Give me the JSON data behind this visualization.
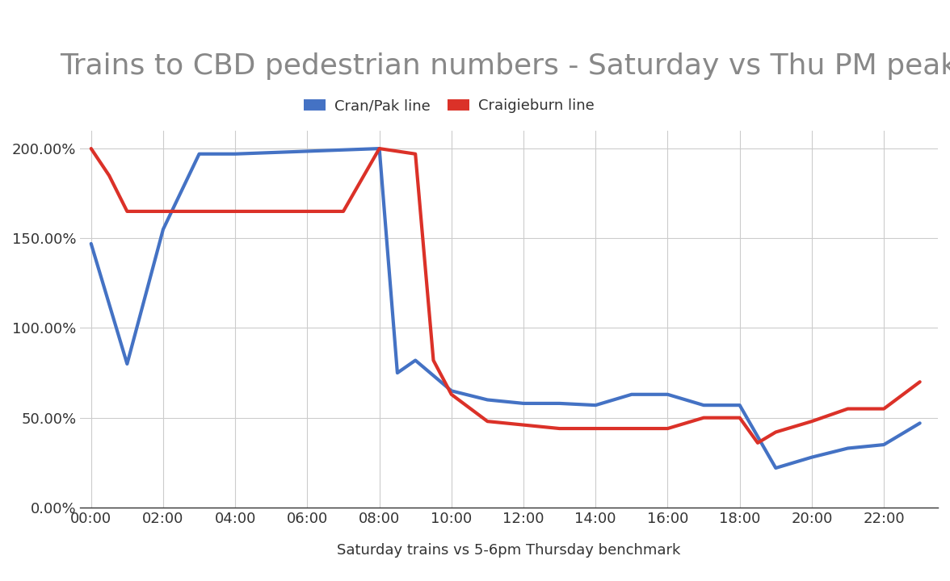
{
  "title": "Trains to CBD pedestrian numbers - Saturday vs Thu PM peak",
  "xlabel": "Saturday trains vs 5-6pm Thursday benchmark",
  "legend": [
    "Cran/Pak line",
    "Craigieburn line"
  ],
  "legend_colors": [
    "#4472c4",
    "#db3128"
  ],
  "background_color": "#ffffff",
  "grid_color": "#cccccc",
  "title_color": "#888888",
  "xlabel_color": "#333333",
  "x_ticks": [
    "00:00",
    "02:00",
    "04:00",
    "06:00",
    "08:00",
    "10:00",
    "12:00",
    "14:00",
    "16:00",
    "18:00",
    "20:00",
    "22:00"
  ],
  "x_tick_positions": [
    0,
    2,
    4,
    6,
    8,
    10,
    12,
    14,
    16,
    18,
    20,
    22
  ],
  "blue_x": [
    0,
    1,
    2,
    3,
    4,
    8,
    8.5,
    9,
    10,
    11,
    12,
    13,
    14,
    15,
    16,
    17,
    18,
    19,
    20,
    21,
    22,
    23
  ],
  "blue_y": [
    1.47,
    0.8,
    1.55,
    1.97,
    1.97,
    2.0,
    0.75,
    0.82,
    0.65,
    0.6,
    0.58,
    0.58,
    0.57,
    0.63,
    0.63,
    0.57,
    0.57,
    0.22,
    0.28,
    0.33,
    0.35,
    0.47
  ],
  "red_x": [
    0,
    0.5,
    1,
    2,
    3,
    4,
    5,
    6,
    7,
    8,
    9,
    9.5,
    10,
    11,
    12,
    13,
    14,
    15,
    16,
    17,
    18,
    18.5,
    19,
    20,
    21,
    22,
    23
  ],
  "red_y": [
    2.0,
    1.85,
    1.65,
    1.65,
    1.65,
    1.65,
    1.65,
    1.65,
    1.65,
    2.0,
    1.97,
    0.82,
    0.63,
    0.48,
    0.46,
    0.44,
    0.44,
    0.44,
    0.44,
    0.5,
    0.5,
    0.36,
    0.42,
    0.48,
    0.55,
    0.55,
    0.7
  ],
  "ylim": [
    0.0,
    2.1
  ],
  "yticks": [
    0.0,
    0.5,
    1.0,
    1.5,
    2.0
  ],
  "title_fontsize": 26,
  "legend_fontsize": 13,
  "tick_fontsize": 13,
  "xlabel_fontsize": 13,
  "line_width": 3.0
}
